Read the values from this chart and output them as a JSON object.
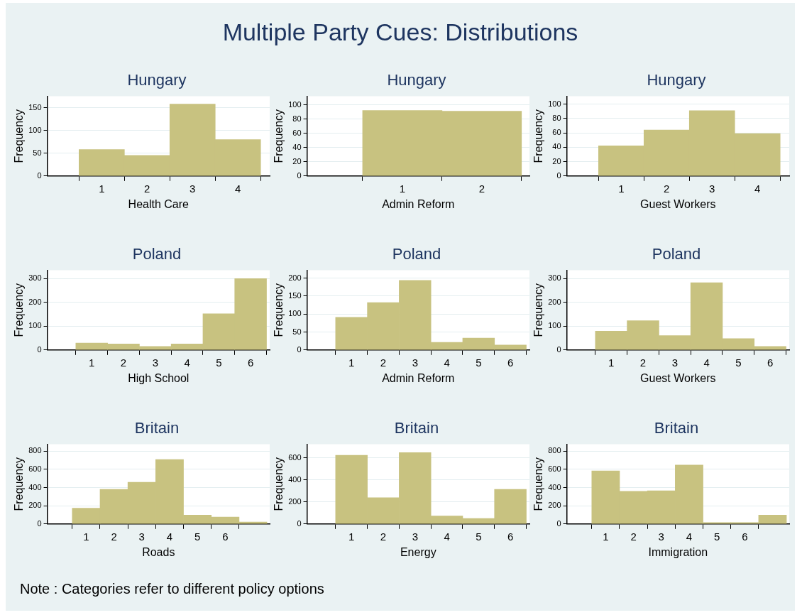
{
  "chart_data": [
    {
      "type": "other",
      "title": "Multiple Party Cues: Distributions",
      "annotations": [
        "Note : Categories refer to different policy options"
      ]
    },
    {
      "type": "histogram",
      "title": "Hungary",
      "xlabel": "Health Care",
      "ylabel": "Frequency",
      "bins": [
        0.5,
        1.5,
        2.5,
        3.5,
        4.5
      ],
      "values": [
        58,
        45,
        158,
        80
      ],
      "color": "#c8c280",
      "xlim": [
        -0.2,
        4.7
      ],
      "xticks": [
        1,
        2,
        3,
        4
      ],
      "ylim": [
        0,
        175
      ],
      "yticks": [
        0,
        50,
        100,
        150
      ],
      "grid": "y"
    },
    {
      "type": "histogram",
      "title": "Hungary",
      "xlabel": "Admin Reform",
      "ylabel": "Frequency",
      "bins": [
        0.5,
        1.5,
        2.5
      ],
      "values": [
        92,
        91
      ],
      "color": "#c8c280",
      "xlim": [
        -0.2,
        2.6
      ],
      "xticks": [
        1,
        2
      ],
      "ylim": [
        0,
        112
      ],
      "yticks": [
        0,
        20,
        40,
        60,
        80,
        100
      ],
      "grid": "y"
    },
    {
      "type": "histogram",
      "title": "Hungary",
      "xlabel": "Guest Workers",
      "ylabel": "Frequency",
      "bins": [
        0.5,
        1.5,
        2.5,
        3.5,
        4.5
      ],
      "values": [
        42,
        64,
        91,
        59
      ],
      "color": "#c8c280",
      "xlim": [
        -0.2,
        4.7
      ],
      "xticks": [
        1,
        2,
        3,
        4
      ],
      "ylim": [
        0,
        111
      ],
      "yticks": [
        0,
        20,
        40,
        60,
        80,
        100
      ],
      "grid": "y"
    },
    {
      "type": "histogram",
      "title": "Poland",
      "xlabel": "High School",
      "ylabel": "Frequency",
      "bins": [
        0.5,
        1.5,
        2.5,
        3.5,
        4.5,
        5.5,
        6.5
      ],
      "values": [
        29,
        25,
        15,
        25,
        152,
        300
      ],
      "color": "#c8c280",
      "xlim": [
        -0.4,
        6.6
      ],
      "xticks": [
        1,
        2,
        3,
        4,
        5,
        6
      ],
      "ylim": [
        0,
        335
      ],
      "yticks": [
        0,
        100,
        200,
        300
      ],
      "grid": "y"
    },
    {
      "type": "histogram",
      "title": "Poland",
      "xlabel": "Admin Reform",
      "ylabel": "Frequency",
      "bins": [
        0.5,
        1.5,
        2.5,
        3.5,
        4.5,
        5.5,
        6.5
      ],
      "values": [
        91,
        132,
        194,
        21,
        33,
        14
      ],
      "color": "#c8c280",
      "xlim": [
        -0.4,
        6.6
      ],
      "xticks": [
        1,
        2,
        3,
        4,
        5,
        6
      ],
      "ylim": [
        0,
        222
      ],
      "yticks": [
        0,
        50,
        100,
        150,
        200
      ],
      "grid": "y"
    },
    {
      "type": "histogram",
      "title": "Poland",
      "xlabel": "Guest Workers",
      "ylabel": "Frequency",
      "bins": [
        0.5,
        1.5,
        2.5,
        3.5,
        4.5,
        5.5,
        6.5
      ],
      "values": [
        79,
        123,
        60,
        283,
        48,
        15
      ],
      "color": "#c8c280",
      "xlim": [
        -0.4,
        6.6
      ],
      "xticks": [
        1,
        2,
        3,
        4,
        5,
        6
      ],
      "ylim": [
        0,
        335
      ],
      "yticks": [
        0,
        100,
        200,
        300
      ],
      "grid": "y"
    },
    {
      "type": "histogram",
      "title": "Britain",
      "xlabel": "Roads",
      "ylabel": "Frequency",
      "bins": [
        0.5,
        1.5,
        2.5,
        3.5,
        4.5,
        5.5,
        6.5,
        7.5
      ],
      "values": [
        174,
        380,
        457,
        707,
        98,
        76,
        22
      ],
      "color": "#c8c280",
      "xlim": [
        -0.4,
        7.6
      ],
      "xticks": [
        1,
        2,
        3,
        4,
        5,
        6
      ],
      "ylim": [
        0,
        875
      ],
      "yticks": [
        0,
        200,
        400,
        600,
        800
      ],
      "grid": "y"
    },
    {
      "type": "histogram",
      "title": "Britain",
      "xlabel": "Energy",
      "ylabel": "Frequency",
      "bins": [
        0.5,
        1.5,
        2.5,
        3.5,
        4.5,
        5.5,
        6.5
      ],
      "values": [
        623,
        238,
        646,
        72,
        49,
        314
      ],
      "color": "#c8c280",
      "xlim": [
        -0.4,
        6.6
      ],
      "xticks": [
        1,
        2,
        3,
        4,
        5,
        6
      ],
      "ylim": [
        0,
        722
      ],
      "yticks": [
        0,
        200,
        400,
        600
      ],
      "grid": "y"
    },
    {
      "type": "histogram",
      "title": "Britain",
      "xlabel": "Immigration",
      "ylabel": "Frequency",
      "bins": [
        0.5,
        1.5,
        2.5,
        3.5,
        4.5,
        5.5,
        6.5,
        7.5
      ],
      "values": [
        582,
        359,
        365,
        647,
        16,
        16,
        98
      ],
      "color": "#c8c280",
      "xlim": [
        -0.4,
        7.6
      ],
      "xticks": [
        1,
        2,
        3,
        4,
        5,
        6
      ],
      "ylim": [
        0,
        875
      ],
      "yticks": [
        0,
        200,
        400,
        600,
        800
      ],
      "grid": "y"
    }
  ]
}
